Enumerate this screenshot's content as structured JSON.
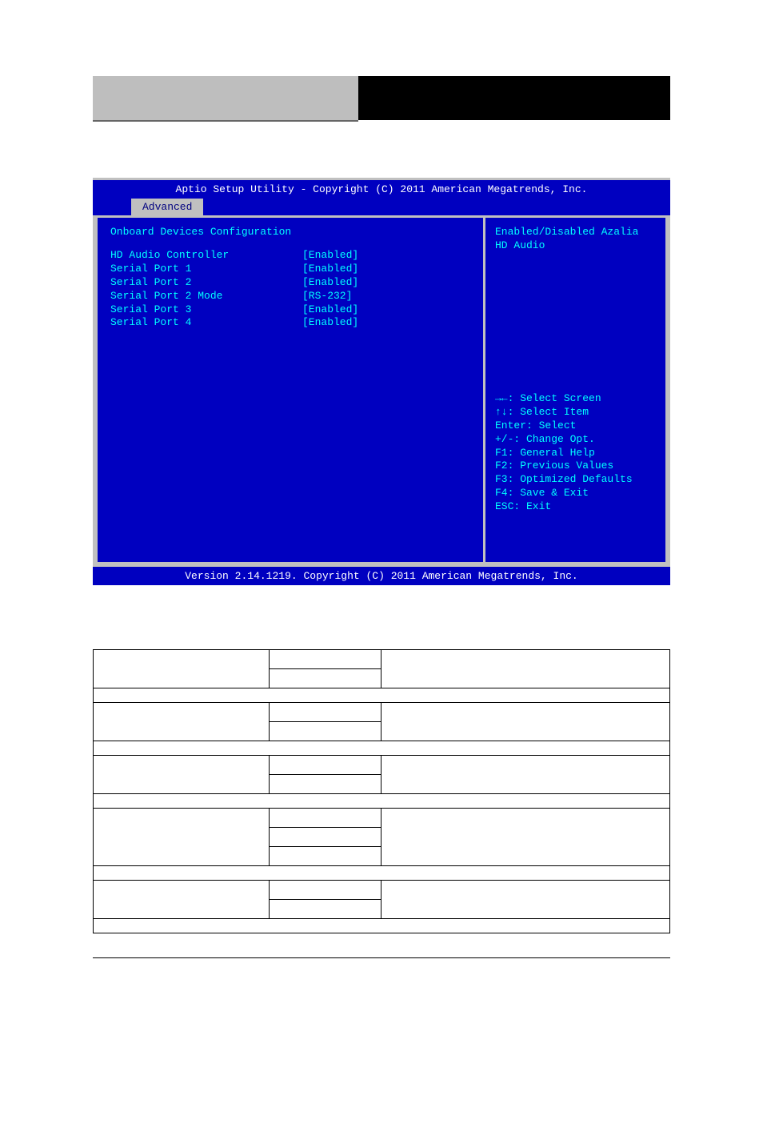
{
  "header": {
    "left_bg": "#bebebe",
    "right_bg": "#000000"
  },
  "bios": {
    "title": "Aptio Setup Utility - Copyright (C) 2011 American Megatrends, Inc.",
    "tab": "Advanced",
    "section_title": "Onboard Devices Configuration",
    "settings": [
      {
        "label": "HD Audio Controller",
        "value": "[Enabled]"
      },
      {
        "label": "Serial Port 1",
        "value": "[Enabled]"
      },
      {
        "label": "Serial Port 2",
        "value": "[Enabled]"
      },
      {
        "label": "Serial Port 2 Mode",
        "value": "[RS-232]"
      },
      {
        "label": "Serial Port 3",
        "value": "[Enabled]"
      },
      {
        "label": "Serial Port 4",
        "value": "[Enabled]"
      }
    ],
    "help_text": "Enabled/Disabled Azalia HD Audio",
    "nav": [
      "→←: Select Screen",
      "↑↓: Select Item",
      "Enter: Select",
      "+/-: Change Opt.",
      "F1: General Help",
      "F2: Previous Values",
      "F3: Optimized Defaults",
      "F4: Save & Exit",
      "ESC: Exit"
    ],
    "footer": "Version 2.14.1219. Copyright (C) 2011 American Megatrends, Inc.",
    "colors": {
      "bg": "#0000c0",
      "frame": "#c0c0c0",
      "text_white": "#ffffff",
      "text_cyan": "#00ffff",
      "tab_bg": "#c0c0c0",
      "tab_fg": "#000080"
    }
  },
  "table": {
    "rows": [
      {
        "type": "option",
        "name": "",
        "values": [
          "",
          ""
        ],
        "desc": ""
      },
      {
        "type": "full"
      },
      {
        "type": "option",
        "name": "",
        "values": [
          "",
          ""
        ],
        "desc": ""
      },
      {
        "type": "full"
      },
      {
        "type": "option",
        "name": "",
        "values": [
          "",
          ""
        ],
        "desc": ""
      },
      {
        "type": "full"
      },
      {
        "type": "option",
        "name": "",
        "values": [
          "",
          "",
          ""
        ],
        "desc": ""
      },
      {
        "type": "full"
      },
      {
        "type": "option",
        "name": "",
        "values": [
          "",
          ""
        ],
        "desc": ""
      },
      {
        "type": "full"
      }
    ]
  }
}
